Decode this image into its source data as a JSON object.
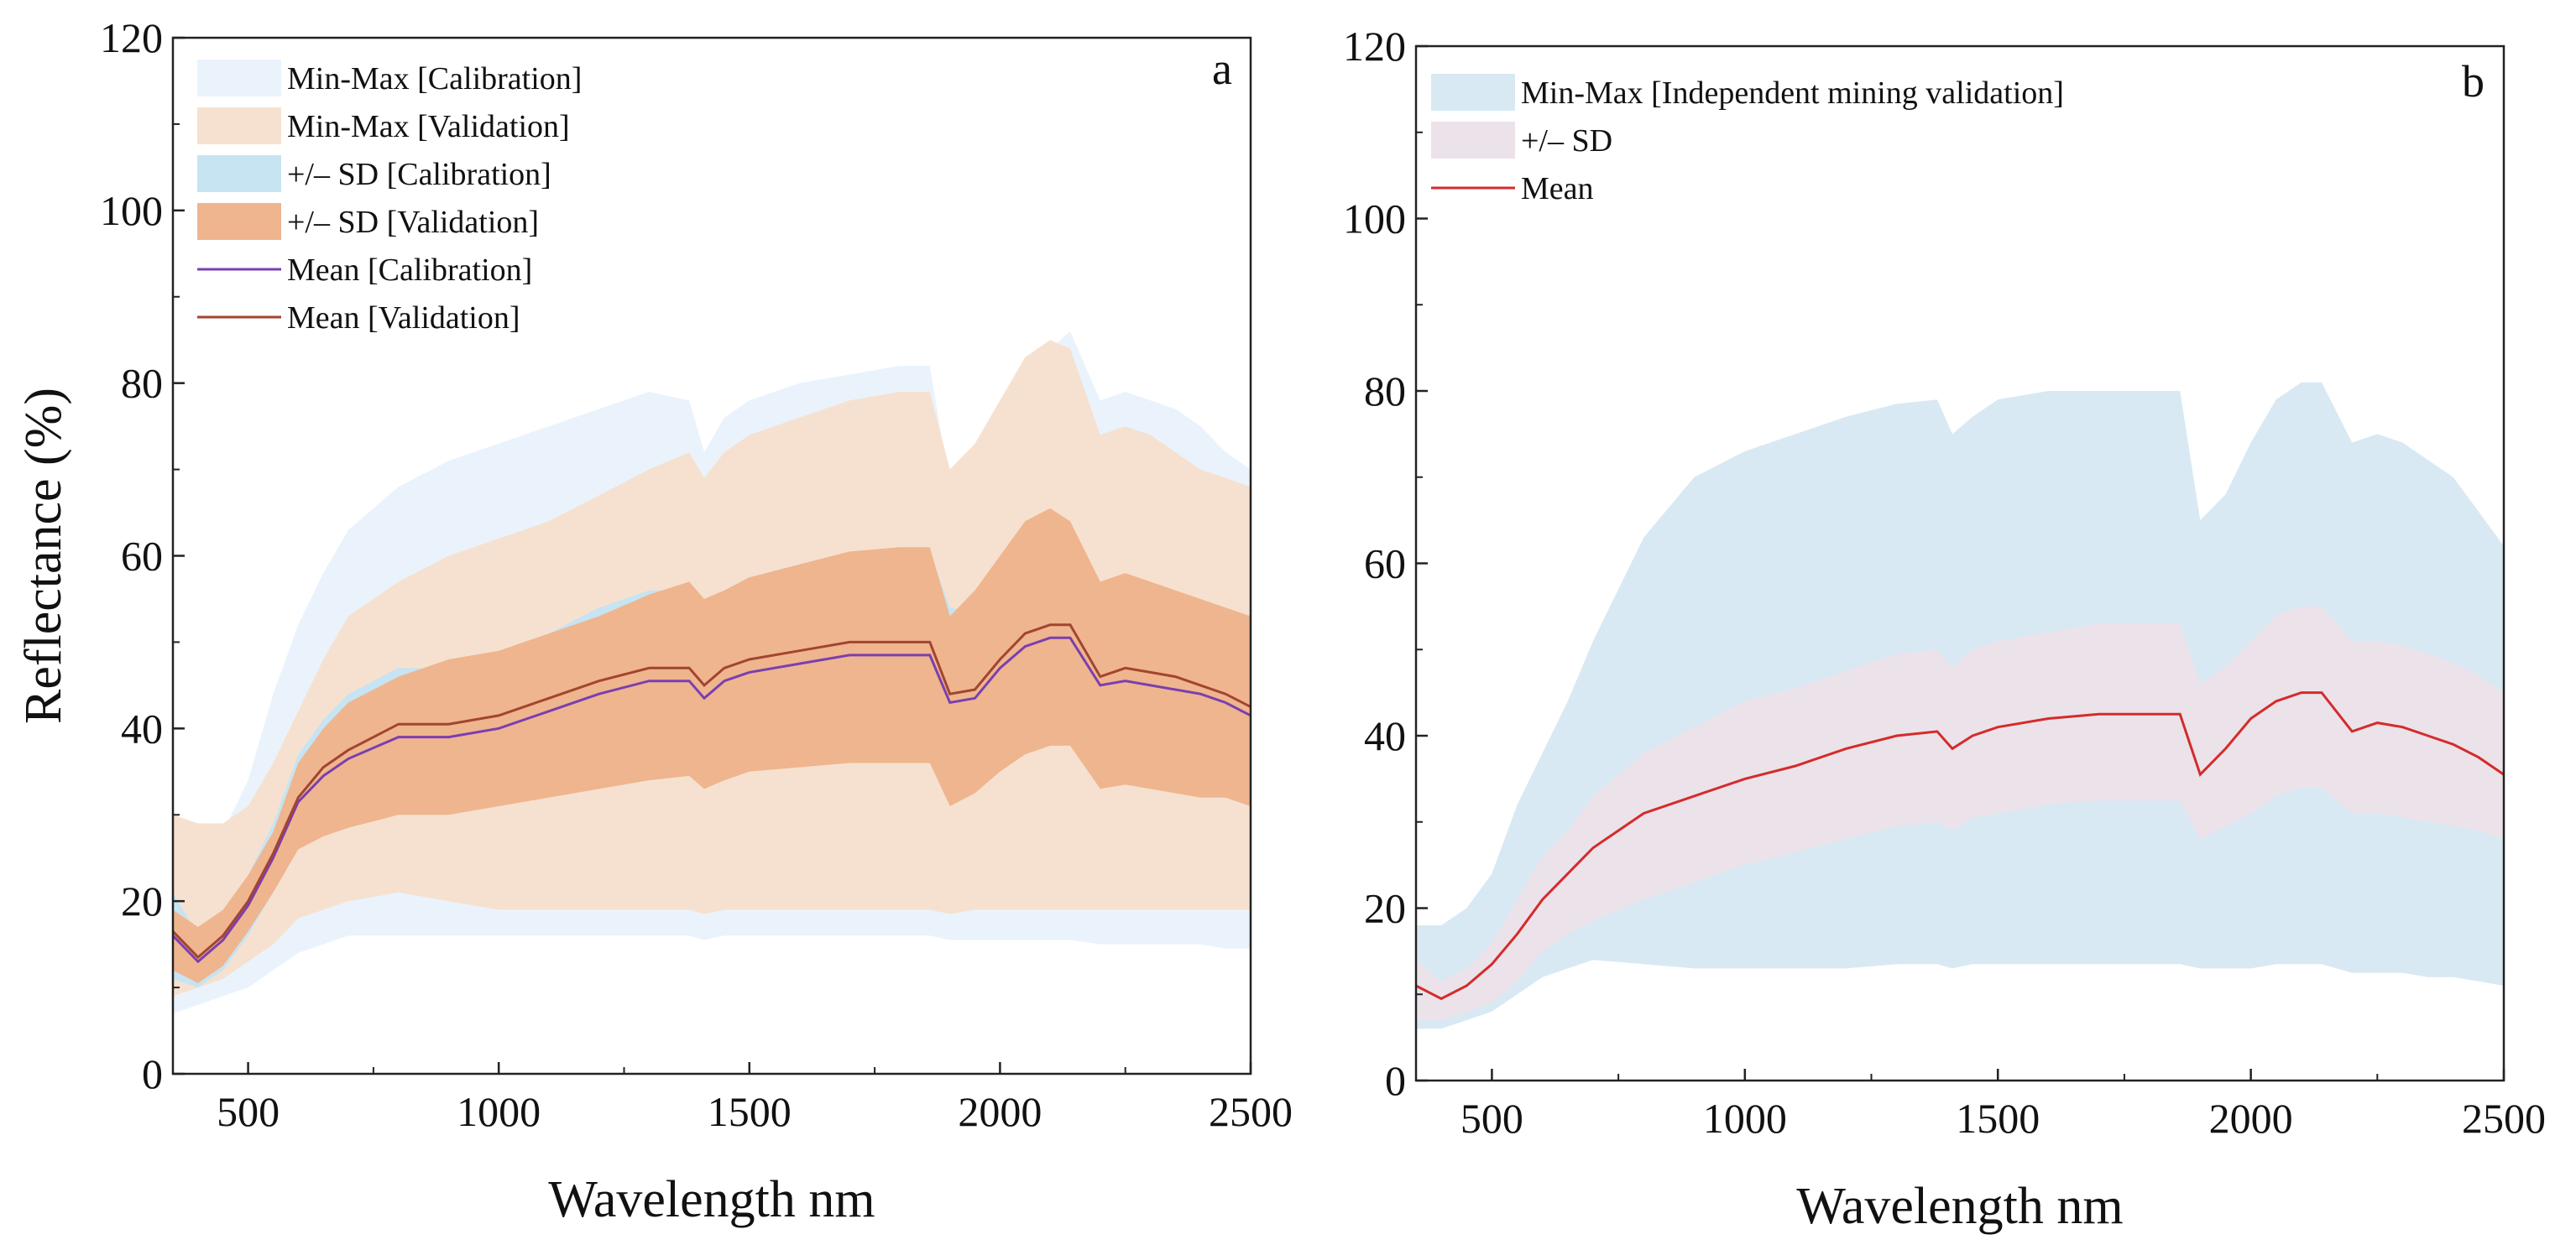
{
  "figure_title": "",
  "chart_data": [
    {
      "type": "area",
      "panel_label": "a",
      "xlabel": "Wavelength nm",
      "ylabel": "Reflectance (%)",
      "xlim": [
        350,
        2500
      ],
      "ylim": [
        0,
        120
      ],
      "xticks": [
        500,
        1000,
        1500,
        2000,
        2500
      ],
      "yticks": [
        0,
        20,
        40,
        60,
        80,
        100,
        120
      ],
      "grid": false,
      "legend_position": "top-left",
      "x": [
        350,
        400,
        450,
        500,
        550,
        600,
        650,
        700,
        800,
        900,
        1000,
        1100,
        1200,
        1300,
        1380,
        1410,
        1450,
        1500,
        1600,
        1700,
        1800,
        1860,
        1900,
        1950,
        2000,
        2050,
        2100,
        2140,
        2200,
        2250,
        2300,
        2350,
        2400,
        2450,
        2500
      ],
      "series": [
        {
          "name": "Min-Max [Calibration]",
          "kind": "band",
          "color": "#eaf3fb",
          "lower": [
            7,
            8,
            9,
            10,
            12,
            14,
            15,
            16,
            16,
            16,
            16,
            16,
            16,
            16,
            16,
            15.5,
            16,
            16,
            16,
            16,
            16,
            16,
            15.5,
            15.5,
            15.5,
            15.5,
            15.5,
            15.5,
            15,
            15,
            15,
            15,
            15,
            14.5,
            14.5
          ],
          "upper": [
            22,
            24,
            28,
            34,
            44,
            52,
            58,
            63,
            68,
            71,
            73,
            75,
            77,
            79,
            78,
            72,
            76,
            78,
            80,
            81,
            82,
            82,
            68,
            70,
            74,
            80,
            84,
            86,
            78,
            79,
            78,
            77,
            75,
            72,
            70
          ]
        },
        {
          "name": "Min-Max [Validation]",
          "kind": "band",
          "color": "#f6e1d0",
          "lower": [
            9,
            10,
            11,
            13,
            15,
            18,
            19,
            20,
            21,
            20,
            19,
            19,
            19,
            19,
            19,
            18.5,
            19,
            19,
            19,
            19,
            19,
            19,
            18.5,
            19,
            19,
            19,
            19,
            19,
            19,
            19,
            19,
            19,
            19,
            19,
            19
          ],
          "upper": [
            30,
            29,
            29,
            31,
            36,
            42,
            48,
            53,
            57,
            60,
            62,
            64,
            67,
            70,
            72,
            69,
            72,
            74,
            76,
            78,
            79,
            79,
            70,
            73,
            78,
            83,
            85,
            84,
            74,
            75,
            74,
            72,
            70,
            69,
            68
          ]
        },
        {
          "name": "+/– SD [Calibration]",
          "kind": "band",
          "color": "#c6e4f2",
          "lower": [
            11,
            10,
            12,
            16,
            21,
            26,
            28,
            29,
            31,
            31,
            32,
            33,
            34,
            35,
            35,
            33.5,
            35,
            35.5,
            36,
            36.5,
            36.5,
            36.5,
            32,
            33.5,
            36,
            38,
            39,
            39,
            34,
            34.5,
            34,
            33.5,
            33,
            32.5,
            31
          ]
        },
        {
          "name": "+/– SD [Validation]",
          "kind": "band",
          "color": "#efb58e",
          "lower": [
            12,
            10.5,
            12.5,
            16.5,
            21,
            26,
            27.5,
            28.5,
            30,
            30,
            31,
            32,
            33,
            34,
            34.5,
            33,
            34,
            35,
            35.5,
            36,
            36,
            36,
            31,
            32.5,
            35,
            37,
            38,
            38,
            33,
            33.5,
            33,
            32.5,
            32,
            32,
            31
          ],
          "upper": [
            19,
            17,
            19,
            23,
            28,
            36,
            40,
            43,
            46,
            48,
            49,
            51,
            53,
            55.5,
            57,
            55,
            56,
            57.5,
            59,
            60.5,
            61,
            61,
            53,
            56,
            60,
            64,
            65.5,
            64,
            57,
            58,
            57,
            56,
            55,
            54,
            53
          ]
        },
        {
          "name": "Mean [Calibration]",
          "kind": "line",
          "color": "#7a3fb0",
          "values": [
            16,
            13,
            15.5,
            19.5,
            25,
            31.5,
            34.5,
            36.5,
            39,
            39,
            40,
            42,
            44,
            45.5,
            45.5,
            43.5,
            45.5,
            46.5,
            47.5,
            48.5,
            48.5,
            48.5,
            43,
            43.5,
            47,
            49.5,
            50.5,
            50.5,
            45,
            45.5,
            45,
            44.5,
            44,
            43,
            41.5
          ]
        },
        {
          "name": "Mean [Validation]",
          "kind": "line",
          "color": "#a24530",
          "values": [
            16.5,
            13.5,
            16,
            20,
            25.5,
            32,
            35.5,
            37.5,
            40.5,
            40.5,
            41.5,
            43.5,
            45.5,
            47,
            47,
            45,
            47,
            48,
            49,
            50,
            50,
            50,
            44,
            44.5,
            48,
            51,
            52,
            52,
            46,
            47,
            46.5,
            46,
            45,
            44,
            42.5
          ]
        }
      ]
    },
    {
      "type": "area",
      "panel_label": "b",
      "xlabel": "Wavelength nm",
      "ylabel": "",
      "xlim": [
        350,
        2500
      ],
      "ylim": [
        0,
        120
      ],
      "xticks": [
        500,
        1000,
        1500,
        2000,
        2500
      ],
      "yticks": [
        0,
        20,
        40,
        60,
        80,
        100,
        120
      ],
      "grid": false,
      "legend_position": "top-left",
      "x": [
        350,
        400,
        450,
        500,
        550,
        600,
        650,
        700,
        800,
        900,
        1000,
        1100,
        1200,
        1300,
        1380,
        1410,
        1450,
        1500,
        1600,
        1700,
        1800,
        1860,
        1900,
        1950,
        2000,
        2050,
        2100,
        2140,
        2200,
        2250,
        2300,
        2350,
        2400,
        2450,
        2500
      ],
      "series": [
        {
          "name": "Min-Max [Independent mining validation]",
          "kind": "band",
          "color": "#d8e9f3",
          "lower": [
            6,
            6,
            7,
            8,
            10,
            12,
            13,
            14,
            13.5,
            13,
            13,
            13,
            13,
            13.5,
            13.5,
            13,
            13.5,
            13.5,
            13.5,
            13.5,
            13.5,
            13.5,
            13,
            13,
            13,
            13.5,
            13.5,
            13.5,
            12.5,
            12.5,
            12.5,
            12,
            12,
            11.5,
            11
          ],
          "upper": [
            18,
            18,
            20,
            24,
            32,
            38,
            44,
            51,
            63,
            70,
            73,
            75,
            77,
            78.5,
            79,
            75,
            77,
            79,
            80,
            80,
            80,
            80,
            65,
            68,
            74,
            79,
            81,
            81,
            74,
            75,
            74,
            72,
            70,
            66,
            62
          ]
        },
        {
          "name": "+/– SD",
          "kind": "band",
          "color": "#ece2ea",
          "lower": [
            7,
            7,
            8,
            9,
            11.5,
            15,
            17,
            18.5,
            21,
            23,
            25,
            26.5,
            28,
            29.5,
            30,
            29,
            30.5,
            31,
            32,
            32.5,
            32.5,
            32.5,
            28,
            29.5,
            31,
            33,
            34,
            34,
            31,
            31,
            30.5,
            30,
            29.5,
            29,
            28
          ],
          "upper": [
            14,
            11.5,
            13,
            16,
            21,
            26,
            29,
            33,
            38,
            41,
            44,
            45.5,
            47.5,
            49.5,
            50,
            48,
            50,
            51,
            52,
            53,
            53,
            53,
            46,
            48,
            51,
            54,
            55,
            55,
            51,
            51,
            50.5,
            49.5,
            48.5,
            47,
            45
          ]
        },
        {
          "name": "Mean",
          "kind": "line",
          "color": "#d42b2b",
          "values": [
            11,
            9.5,
            11,
            13.5,
            17,
            21,
            24,
            27,
            31,
            33,
            35,
            36.5,
            38.5,
            40,
            40.5,
            38.5,
            40,
            41,
            42,
            42.5,
            42.5,
            42.5,
            35.5,
            38.5,
            42,
            44,
            45,
            45,
            40.5,
            41.5,
            41,
            40,
            39,
            37.5,
            35.5
          ]
        }
      ]
    }
  ]
}
